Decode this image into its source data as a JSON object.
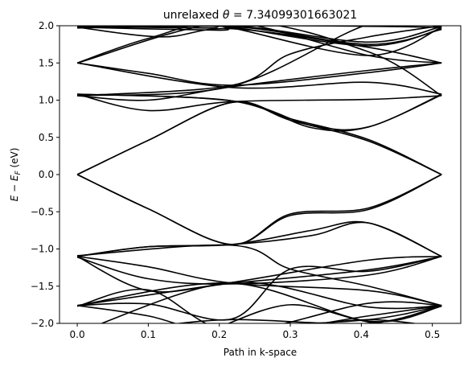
{
  "chart_data": {
    "type": "line",
    "title": "unrelaxed θ = 7.34099301663021",
    "xlabel": "Path in k-space",
    "ylabel": "E − E_F (eV)",
    "xlim": [
      -0.025,
      0.54
    ],
    "ylim": [
      -2.0,
      2.0
    ],
    "xticks": [
      0.0,
      0.1,
      0.2,
      0.3,
      0.4,
      0.5
    ],
    "xtick_labels": [
      "0.0",
      "0.1",
      "0.2",
      "0.3",
      "0.4",
      "0.5"
    ],
    "yticks": [
      -2.0,
      -1.5,
      -1.0,
      -0.5,
      0.0,
      0.5,
      1.0,
      1.5,
      2.0
    ],
    "ytick_labels": [
      "−2.0",
      "−1.5",
      "−1.0",
      "−0.5",
      "0.0",
      "0.5",
      "1.0",
      "1.5",
      "2.0"
    ],
    "line_color": "#000000",
    "high_symmetry_points": [
      0.0,
      0.218,
      0.41,
      0.513
    ],
    "series": [
      {
        "x": [
          0,
          0.1,
          0.218,
          0.3,
          0.41,
          0.513
        ],
        "y": [
          0,
          0.46,
          0.97,
          0.73,
          0.45,
          0
        ]
      },
      {
        "x": [
          0,
          0.1,
          0.218,
          0.3,
          0.41,
          0.513
        ],
        "y": [
          0,
          0.46,
          0.97,
          0.75,
          0.47,
          0
        ]
      },
      {
        "x": [
          0,
          0.1,
          0.218,
          0.3,
          0.41,
          0.513
        ],
        "y": [
          0,
          -0.46,
          -0.94,
          -0.53,
          -0.45,
          0
        ]
      },
      {
        "x": [
          0,
          0.1,
          0.218,
          0.3,
          0.41,
          0.513
        ],
        "y": [
          0,
          -0.46,
          -0.94,
          -0.55,
          -0.47,
          0
        ]
      },
      {
        "x": [
          0,
          0.218,
          0.33,
          0.41,
          0.513
        ],
        "y": [
          1.08,
          0.99,
          0.66,
          0.64,
          1.08
        ]
      },
      {
        "x": [
          0,
          0.218,
          0.33,
          0.41,
          0.513
        ],
        "y": [
          1.08,
          0.99,
          0.63,
          0.64,
          1.07
        ]
      },
      {
        "x": [
          0,
          0.1,
          0.218,
          0.41,
          0.513
        ],
        "y": [
          1.08,
          0.86,
          0.98,
          1.01,
          1.06
        ]
      },
      {
        "x": [
          0,
          0.1,
          0.218,
          0.41,
          0.513
        ],
        "y": [
          1.06,
          1.0,
          1.18,
          1.4,
          1.5
        ]
      },
      {
        "x": [
          0,
          0.1,
          0.218,
          0.41,
          0.513
        ],
        "y": [
          1.5,
          1.36,
          1.2,
          1.37,
          1.5
        ]
      },
      {
        "x": [
          0,
          0.218,
          0.41,
          0.513
        ],
        "y": [
          1.5,
          1.17,
          1.24,
          1.08
        ]
      },
      {
        "x": [
          0,
          0.1,
          0.218,
          0.41,
          0.513
        ],
        "y": [
          1.5,
          1.83,
          2.05,
          1.6,
          1.5
        ]
      },
      {
        "x": [
          0,
          0.218,
          0.41,
          0.513
        ],
        "y": [
          1.5,
          2.05,
          1.65,
          1.06
        ]
      },
      {
        "x": [
          0,
          0.218,
          0.41,
          0.513
        ],
        "y": [
          1.06,
          1.19,
          2.02,
          2.05
        ]
      },
      {
        "x": [
          0,
          0.218,
          0.3,
          0.41,
          0.513
        ],
        "y": [
          1.06,
          1.2,
          1.62,
          1.85,
          2.0
        ]
      },
      {
        "x": [
          0,
          0.12,
          0.218,
          0.41,
          0.513
        ],
        "y": [
          1.98,
          1.85,
          1.96,
          1.71,
          1.5
        ]
      },
      {
        "x": [
          0,
          0.218,
          0.41,
          0.513
        ],
        "y": [
          1.97,
          1.99,
          1.75,
          1.95
        ]
      },
      {
        "x": [
          0,
          0.218,
          0.41,
          0.513
        ],
        "y": [
          2.0,
          2.0,
          1.78,
          1.99
        ]
      },
      {
        "x": [
          0,
          0.2,
          0.218,
          0.41,
          0.513
        ],
        "y": [
          1.98,
          1.94,
          1.97,
          1.6,
          1.98
        ]
      },
      {
        "x": [
          0,
          0.18,
          0.218,
          0.41,
          0.513
        ],
        "y": [
          1.99,
          1.97,
          1.98,
          1.73,
          1.96
        ]
      },
      {
        "x": [
          0,
          0.3,
          0.513
        ],
        "y": [
          1.98,
          2.0,
          1.98
        ]
      },
      {
        "x": [
          0,
          0.1,
          0.218,
          0.33,
          0.41,
          0.513
        ],
        "y": [
          -1.1,
          -0.97,
          -0.94,
          -0.82,
          -0.65,
          -1.1
        ]
      },
      {
        "x": [
          0,
          0.1,
          0.218,
          0.33,
          0.41,
          0.513
        ],
        "y": [
          -1.1,
          -0.97,
          -0.94,
          -0.75,
          -0.65,
          -1.1
        ]
      },
      {
        "x": [
          0,
          0.1,
          0.218,
          0.41,
          0.513
        ],
        "y": [
          -1.1,
          -1.24,
          -1.46,
          -1.56,
          -1.76
        ]
      },
      {
        "x": [
          0,
          0.1,
          0.218,
          0.41,
          0.513
        ],
        "y": [
          -1.1,
          -1.56,
          -1.46,
          -1.28,
          -1.1
        ]
      },
      {
        "x": [
          0,
          0.218,
          0.3,
          0.41,
          0.513
        ],
        "y": [
          -1.09,
          -0.95,
          -1.27,
          -1.5,
          -1.76
        ]
      },
      {
        "x": [
          0,
          0.1,
          0.218,
          0.41,
          0.513
        ],
        "y": [
          -1.11,
          -1.4,
          -1.47,
          -1.35,
          -1.1
        ]
      },
      {
        "x": [
          0,
          0.218,
          0.41,
          0.513
        ],
        "y": [
          -1.76,
          -1.45,
          -1.15,
          -1.1
        ]
      },
      {
        "x": [
          0,
          0.1,
          0.218,
          0.3,
          0.41,
          0.513
        ],
        "y": [
          -1.76,
          -1.74,
          -1.94,
          -1.27,
          -1.3,
          -1.1
        ]
      },
      {
        "x": [
          0,
          0.1,
          0.218,
          0.41,
          0.513
        ],
        "y": [
          -1.76,
          -1.9,
          -2.15,
          -1.9,
          -1.76
        ]
      },
      {
        "x": [
          0,
          0.218,
          0.41,
          0.513
        ],
        "y": [
          -1.76,
          -1.46,
          -1.97,
          -1.77
        ]
      },
      {
        "x": [
          0,
          0.1,
          0.218,
          0.41,
          0.513
        ],
        "y": [
          -1.77,
          -1.55,
          -2.1,
          -1.73,
          -1.76
        ]
      },
      {
        "x": [
          0.02,
          0.218,
          0.41,
          0.513
        ],
        "y": [
          -2.05,
          -1.45,
          -1.78,
          -1.76
        ]
      },
      {
        "x": [
          0.1,
          0.218,
          0.41,
          0.513
        ],
        "y": [
          -2.05,
          -1.95,
          -2.0,
          -1.76
        ]
      },
      {
        "x": [
          0.22,
          0.41,
          0.513
        ],
        "y": [
          -2.05,
          -1.95,
          -1.76
        ]
      },
      {
        "x": [
          0.3,
          0.41,
          0.513
        ],
        "y": [
          -2.05,
          -1.95,
          -2.05
        ]
      },
      {
        "x": [
          0.2,
          0.3,
          0.41,
          0.513
        ],
        "y": [
          -2.05,
          -1.75,
          -1.98,
          -2.05
        ]
      }
    ]
  }
}
